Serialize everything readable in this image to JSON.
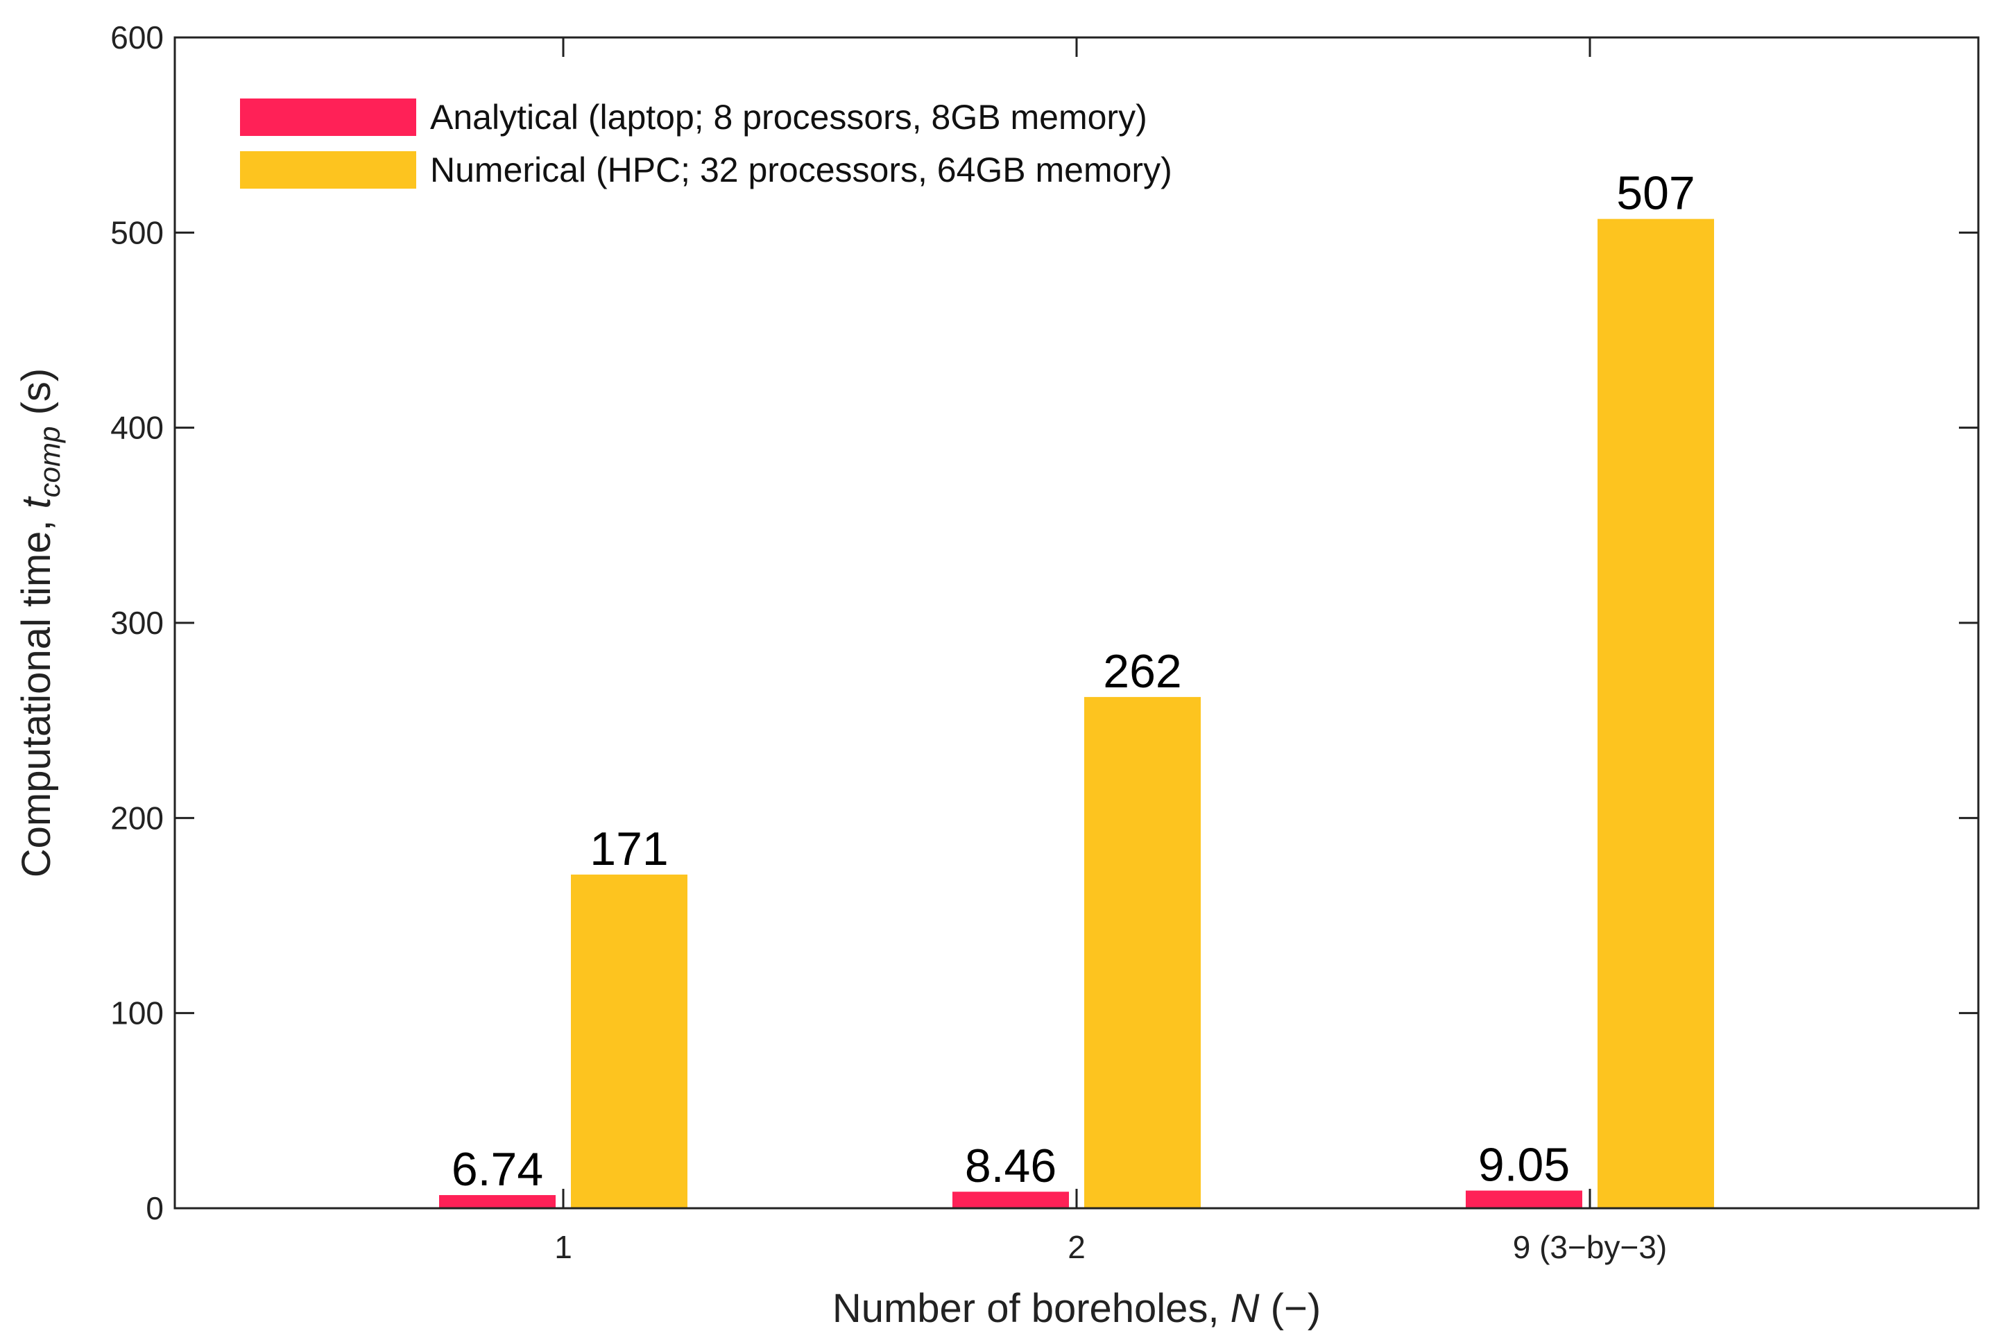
{
  "chart_data": {
    "type": "bar",
    "categories": [
      "1",
      "2",
      "9 (3−by−3)"
    ],
    "series": [
      {
        "name": "Analytical (laptop; 8 processors, 8GB memory)",
        "values": [
          6.74,
          8.46,
          9.05
        ],
        "labels": [
          "6.74",
          "8.46",
          "9.05"
        ],
        "color": "#ff2157"
      },
      {
        "name": "Numerical (HPC; 32 processors, 64GB memory)",
        "values": [
          171,
          262,
          507
        ],
        "labels": [
          "171",
          "262",
          "507"
        ],
        "color": "#fdc41f"
      }
    ],
    "xlabel": {
      "text": "Number of boreholes, ",
      "var": "N",
      "unit": " (−)"
    },
    "ylabel": {
      "text": "Computational time, ",
      "var": "t",
      "sub": "comp",
      "unit": " (s)"
    },
    "ylim": [
      0,
      600
    ],
    "yticks": [
      0,
      100,
      200,
      300,
      400,
      500,
      600
    ],
    "legend_position": "top-left",
    "grid": false
  }
}
